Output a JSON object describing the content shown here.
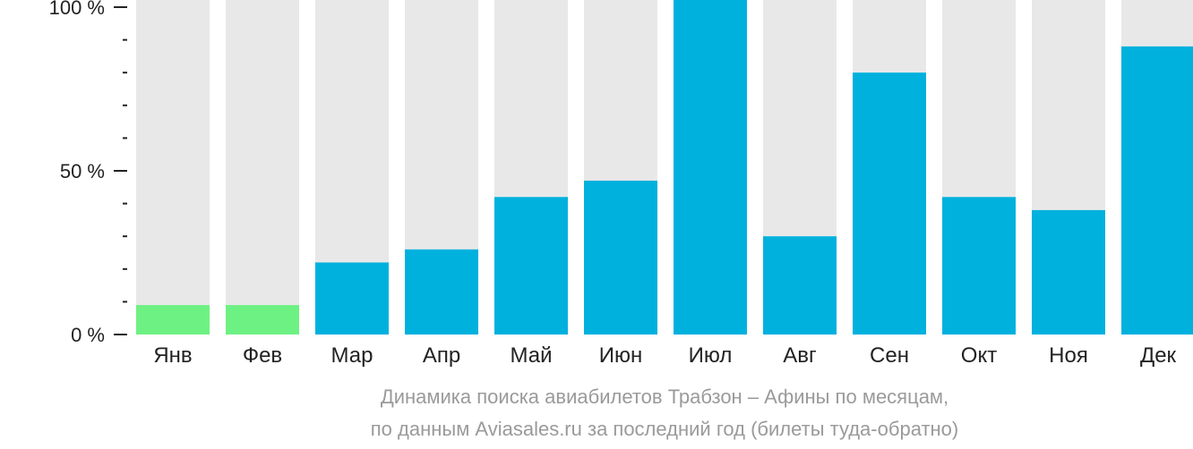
{
  "colors": {
    "background_bar": "#e8e8e9",
    "value_bar": "#00b1dd",
    "highlight_bar": "#6ef183",
    "axis": "#222222",
    "caption": "#9a9a9a"
  },
  "caption": {
    "line1": "Динамика поиска авиабилетов Трабзон – Афины по месяцам,",
    "line2": "по данным Aviasales.ru за последний год (билеты туда-обратно)"
  },
  "chart_data": {
    "type": "bar",
    "categories": [
      "Янв",
      "Фев",
      "Мар",
      "Апр",
      "Май",
      "Июн",
      "Июл",
      "Авг",
      "Сен",
      "Окт",
      "Ноя",
      "Дек"
    ],
    "values": [
      9,
      9,
      22,
      26,
      42,
      47,
      103,
      30,
      80,
      42,
      38,
      88
    ],
    "highlighted": [
      true,
      true,
      false,
      false,
      false,
      false,
      false,
      false,
      false,
      false,
      false,
      false
    ],
    "y_ticks": [
      {
        "value": 0,
        "label": "0 %"
      },
      {
        "value": 50,
        "label": "50 %"
      },
      {
        "value": 100,
        "label": "100 %"
      }
    ],
    "y_minor_step": 10,
    "ylim": [
      0,
      103
    ],
    "title": "",
    "xlabel": "",
    "ylabel": "",
    "grid": false
  }
}
